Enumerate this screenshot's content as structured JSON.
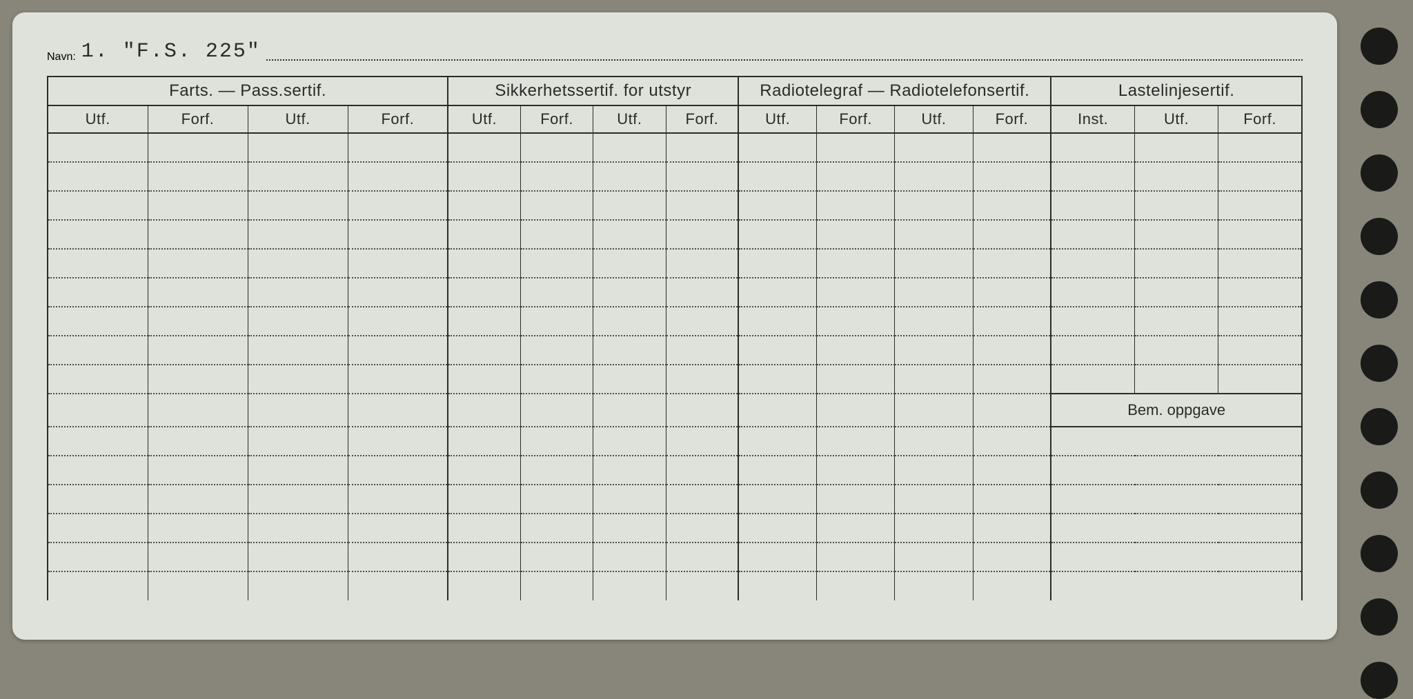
{
  "navn_label": "Navn:",
  "navn_value": "1.  \"F.S. 225\"",
  "groups": [
    {
      "title": "Farts. — Pass.sertif.",
      "cols": [
        "Utf.",
        "Forf.",
        "Utf.",
        "Forf."
      ]
    },
    {
      "title": "Sikkerhetssertif. for utstyr",
      "cols": [
        "Utf.",
        "Forf.",
        "Utf.",
        "Forf."
      ]
    },
    {
      "title": "Radiotelegraf — Radiotelefonsertif.",
      "cols": [
        "Utf.",
        "Forf.",
        "Utf.",
        "Forf."
      ]
    },
    {
      "title": "Lastelinjesertif.",
      "cols": [
        "Inst.",
        "Utf.",
        "Forf."
      ]
    }
  ],
  "bem_label": "Bem. oppgave",
  "body_rows": 16,
  "bem_start_row": 9,
  "colors": {
    "page_bg": "#88857a",
    "card_bg": "#dfe2db",
    "ink": "#2a2a28",
    "dotted": "#4a4a46",
    "hole": "#1a1a18"
  },
  "col_widths_pct": [
    7.3,
    7.3,
    7.3,
    7.3,
    5.3,
    5.3,
    5.3,
    5.3,
    5.7,
    5.7,
    5.7,
    5.7,
    6.1,
    6.1,
    6.1
  ],
  "hole_count": 11
}
